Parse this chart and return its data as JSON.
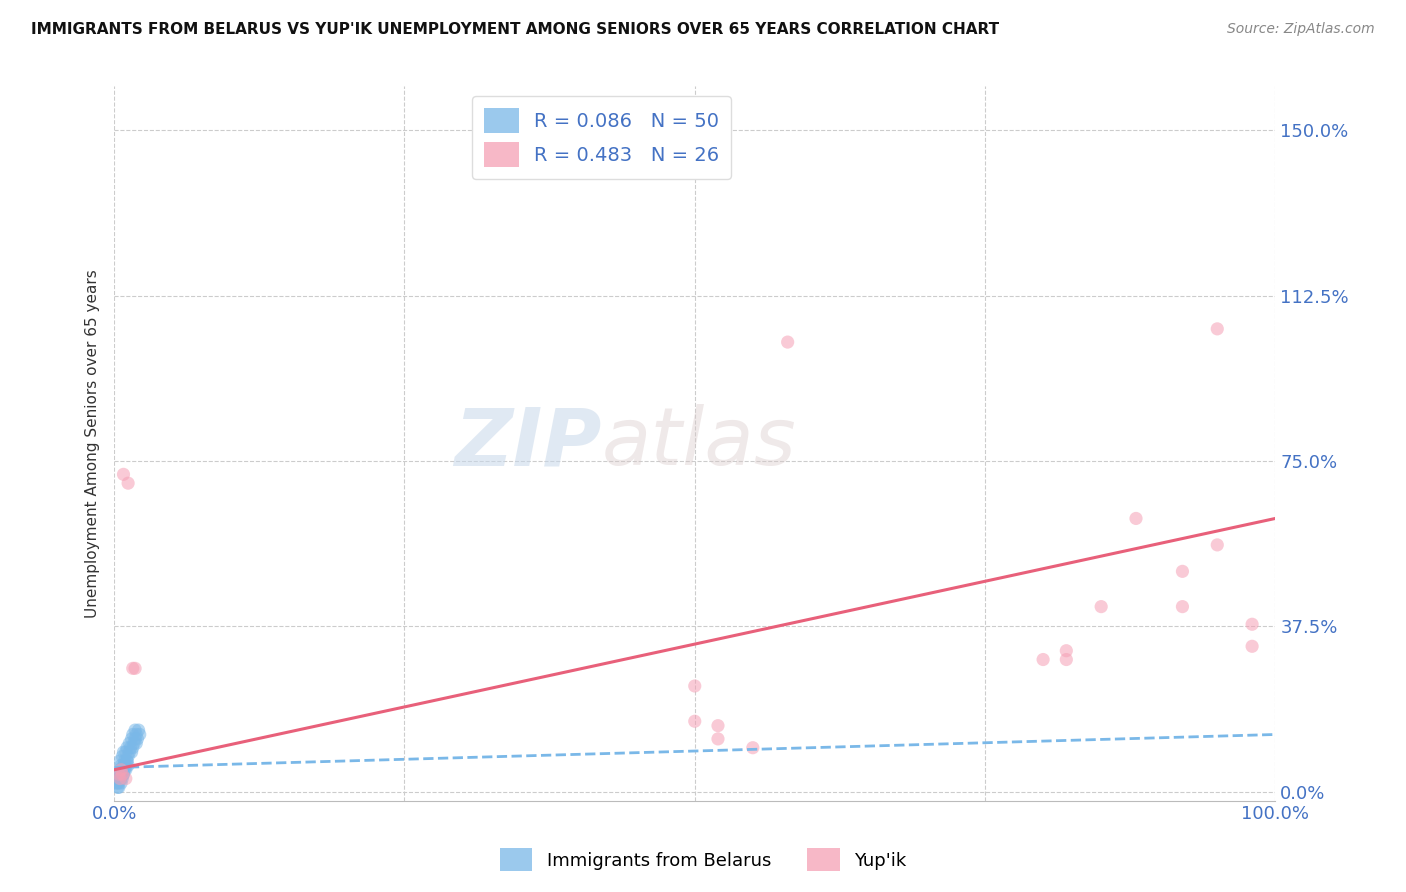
{
  "title": "IMMIGRANTS FROM BELARUS VS YUP'IK UNEMPLOYMENT AMONG SENIORS OVER 65 YEARS CORRELATION CHART",
  "source": "Source: ZipAtlas.com",
  "ylabel": "Unemployment Among Seniors over 65 years",
  "ytick_labels": [
    "0.0%",
    "37.5%",
    "75.0%",
    "112.5%",
    "150.0%"
  ],
  "ytick_values": [
    0.0,
    0.375,
    0.75,
    1.125,
    1.5
  ],
  "xlim": [
    0,
    1.0
  ],
  "ylim": [
    -0.02,
    1.6
  ],
  "legend_r_blue": "R = 0.086",
  "legend_n_blue": "N = 50",
  "legend_r_pink": "R = 0.483",
  "legend_n_pink": "N = 26",
  "blue_scatter_x": [
    0.002,
    0.003,
    0.003,
    0.004,
    0.004,
    0.004,
    0.005,
    0.005,
    0.005,
    0.006,
    0.006,
    0.006,
    0.007,
    0.007,
    0.007,
    0.008,
    0.008,
    0.008,
    0.009,
    0.009,
    0.01,
    0.01,
    0.011,
    0.011,
    0.012,
    0.013,
    0.013,
    0.014,
    0.015,
    0.015,
    0.016,
    0.016,
    0.017,
    0.018,
    0.018,
    0.019,
    0.019,
    0.02,
    0.021,
    0.022,
    0.003,
    0.004,
    0.005,
    0.006,
    0.007,
    0.008,
    0.009,
    0.01,
    0.011,
    0.012
  ],
  "blue_scatter_y": [
    0.02,
    0.01,
    0.03,
    0.02,
    0.04,
    0.01,
    0.03,
    0.05,
    0.07,
    0.04,
    0.06,
    0.02,
    0.03,
    0.05,
    0.08,
    0.04,
    0.06,
    0.09,
    0.05,
    0.07,
    0.06,
    0.09,
    0.07,
    0.1,
    0.08,
    0.09,
    0.11,
    0.1,
    0.09,
    0.12,
    0.1,
    0.13,
    0.11,
    0.12,
    0.14,
    0.11,
    0.13,
    0.12,
    0.14,
    0.13,
    0.02,
    0.03,
    0.04,
    0.03,
    0.05,
    0.04,
    0.06,
    0.05,
    0.07,
    0.06
  ],
  "pink_scatter_x": [
    0.004,
    0.005,
    0.006,
    0.007,
    0.008,
    0.01,
    0.012,
    0.016,
    0.018,
    0.5,
    0.52,
    0.55,
    0.58,
    0.82,
    0.85,
    0.88,
    0.92,
    0.95,
    0.98,
    0.82,
    0.95,
    0.98,
    0.5,
    0.52,
    0.8,
    0.92
  ],
  "pink_scatter_y": [
    0.04,
    0.03,
    0.05,
    0.04,
    0.72,
    0.03,
    0.7,
    0.28,
    0.28,
    0.24,
    0.15,
    0.1,
    1.02,
    0.3,
    0.42,
    0.62,
    0.42,
    0.56,
    0.33,
    0.32,
    1.05,
    0.38,
    0.16,
    0.12,
    0.3,
    0.5
  ],
  "blue_line_x": [
    0.0,
    1.0
  ],
  "blue_line_y": [
    0.055,
    0.13
  ],
  "pink_line_x": [
    0.0,
    1.0
  ],
  "pink_line_y": [
    0.05,
    0.62
  ],
  "scatter_alpha": 0.55,
  "scatter_size": 90,
  "blue_color": "#7ab8e8",
  "pink_color": "#f5a0b5",
  "blue_line_color": "#7ab8e8",
  "pink_line_color": "#e8607a",
  "watermark_zip": "ZIP",
  "watermark_atlas": "atlas",
  "background_color": "#ffffff",
  "grid_color": "#cccccc",
  "title_color": "#111111",
  "tick_color": "#4472c4",
  "source_color": "#888888",
  "ylabel_color": "#333333"
}
